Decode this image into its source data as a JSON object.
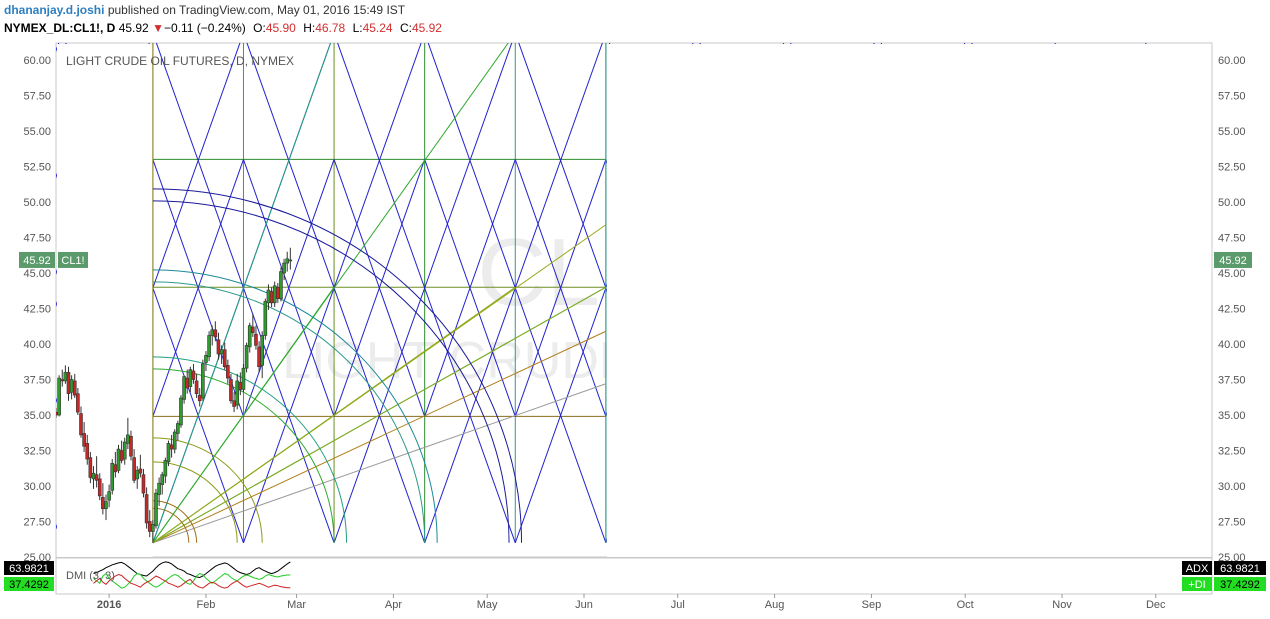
{
  "header": {
    "author": "dhananjay.d.joshi",
    "published": "published on TradingView.com, May 01, 2016 15:49 IST",
    "symbol": "NYMEX_DL:CL1!, D",
    "last": "45.92",
    "change_arrow": "▼",
    "change": "−0.11 (−0.24%)",
    "o_label": "O:",
    "o": "45.90",
    "h_label": "H:",
    "h": "46.78",
    "l_label": "L:",
    "l": "45.24",
    "c_label": "C:",
    "c": "45.92"
  },
  "chart_data": {
    "type": "candlestick",
    "title": "LIGHT CRUDE OIL FUTURES, D, NYMEX",
    "watermark_symbol": "CL1!, D",
    "watermark_name": "LIGHT CRUDE OIL FUTURES",
    "ylim": [
      25,
      61.2
    ],
    "y_ticks": [
      "25.00",
      "27.50",
      "30.00",
      "32.50",
      "35.00",
      "37.50",
      "40.00",
      "42.50",
      "45.00",
      "47.50",
      "50.00",
      "52.50",
      "55.00",
      "57.50",
      "60.00"
    ],
    "y_tick_values": [
      25,
      27.5,
      30,
      32.5,
      35,
      37.5,
      40,
      42.5,
      45,
      47.5,
      50,
      52.5,
      55,
      57.5,
      60
    ],
    "x_ticks": [
      "2016",
      "Feb",
      "Mar",
      "Apr",
      "May",
      "Jun",
      "Jul",
      "Aug",
      "Sep",
      "Oct",
      "Nov",
      "Dec"
    ],
    "x_tick_days": [
      4,
      35,
      64,
      95,
      125,
      156,
      186,
      217,
      248,
      278,
      309,
      339
    ],
    "x_range_days": [
      -13,
      357
    ],
    "last_price_label": "45.92",
    "last_price_symbol": "CL1!",
    "last_price": 45.92,
    "candles": [
      [
        -13,
        35.2,
        35.5,
        34.8,
        35.0
      ],
      [
        -12,
        35.0,
        37.8,
        34.9,
        37.6
      ],
      [
        -11,
        37.5,
        38.2,
        37.0,
        37.4
      ],
      [
        -10,
        37.4,
        38.5,
        37.2,
        38.0
      ],
      [
        -9,
        38.0,
        38.4,
        36.0,
        36.5
      ],
      [
        -8,
        36.6,
        37.8,
        36.1,
        37.5
      ],
      [
        -7,
        37.4,
        37.9,
        36.2,
        36.4
      ],
      [
        -6,
        36.5,
        36.9,
        35.0,
        35.2
      ],
      [
        -5,
        35.1,
        35.6,
        33.4,
        33.6
      ],
      [
        -4,
        33.7,
        34.5,
        32.4,
        32.8
      ],
      [
        -3,
        33.0,
        33.6,
        31.5,
        31.9
      ],
      [
        -2,
        32.0,
        32.4,
        30.2,
        30.6
      ],
      [
        -1,
        30.5,
        31.4,
        29.8,
        30.9
      ],
      [
        0,
        30.8,
        32.1,
        29.9,
        30.4
      ],
      [
        1,
        30.5,
        30.9,
        29.0,
        29.3
      ],
      [
        2,
        29.2,
        30.2,
        28.0,
        28.4
      ],
      [
        3,
        28.4,
        29.4,
        27.6,
        28.9
      ],
      [
        4,
        29.0,
        30.1,
        28.5,
        29.6
      ],
      [
        5,
        29.7,
        31.9,
        29.4,
        31.6
      ],
      [
        6,
        31.5,
        32.4,
        30.6,
        31.0
      ],
      [
        7,
        31.1,
        32.9,
        30.9,
        32.6
      ],
      [
        8,
        32.5,
        33.2,
        31.6,
        31.8
      ],
      [
        9,
        31.9,
        33.4,
        31.5,
        33.1
      ],
      [
        10,
        33.0,
        34.8,
        32.6,
        33.6
      ],
      [
        11,
        33.5,
        33.9,
        31.8,
        32.1
      ],
      [
        12,
        32.0,
        32.6,
        30.2,
        30.4
      ],
      [
        13,
        30.5,
        31.4,
        29.8,
        31.1
      ],
      [
        14,
        31.2,
        32.2,
        30.6,
        30.9
      ],
      [
        15,
        30.8,
        31.2,
        29.2,
        29.5
      ],
      [
        16,
        29.4,
        29.9,
        27.0,
        27.4
      ],
      [
        17,
        27.5,
        28.3,
        26.4,
        26.8
      ],
      [
        18,
        26.8,
        27.6,
        26.0,
        27.3
      ],
      [
        19,
        27.2,
        29.8,
        27.0,
        29.5
      ],
      [
        20,
        29.4,
        30.6,
        28.6,
        30.2
      ],
      [
        21,
        30.1,
        31.0,
        29.4,
        30.8
      ],
      [
        22,
        30.7,
        32.0,
        30.2,
        31.8
      ],
      [
        23,
        31.7,
        33.2,
        31.4,
        33.0
      ],
      [
        24,
        32.9,
        33.6,
        32.0,
        32.6
      ],
      [
        25,
        32.6,
        34.0,
        32.3,
        33.8
      ],
      [
        26,
        33.7,
        34.6,
        33.2,
        34.4
      ],
      [
        27,
        34.3,
        36.4,
        34.1,
        36.2
      ],
      [
        28,
        36.1,
        37.8,
        35.8,
        37.7
      ],
      [
        29,
        37.6,
        38.2,
        36.5,
        36.9
      ],
      [
        30,
        37.0,
        38.4,
        36.6,
        38.2
      ],
      [
        31,
        38.1,
        38.6,
        37.2,
        37.5
      ],
      [
        32,
        37.4,
        37.9,
        36.2,
        36.5
      ],
      [
        33,
        36.4,
        36.9,
        35.6,
        36.0
      ],
      [
        34,
        36.2,
        38.9,
        36.0,
        38.6
      ],
      [
        35,
        38.7,
        39.5,
        38.1,
        39.2
      ],
      [
        36,
        39.1,
        40.9,
        38.8,
        40.6
      ],
      [
        37,
        40.6,
        41.3,
        39.9,
        41.0
      ],
      [
        38,
        41.0,
        41.6,
        40.2,
        40.5
      ],
      [
        39,
        40.3,
        40.8,
        38.9,
        39.3
      ],
      [
        40,
        39.3,
        39.9,
        38.6,
        39.6
      ],
      [
        41,
        39.6,
        40.1,
        38.2,
        38.4
      ],
      [
        42,
        38.5,
        38.9,
        37.2,
        37.6
      ],
      [
        43,
        37.5,
        37.9,
        35.8,
        36.0
      ],
      [
        44,
        36.0,
        36.6,
        35.2,
        35.6
      ],
      [
        45,
        35.7,
        37.9,
        35.4,
        37.4
      ],
      [
        46,
        37.3,
        38.0,
        36.4,
        36.8
      ],
      [
        47,
        36.8,
        38.6,
        36.6,
        38.3
      ],
      [
        48,
        38.3,
        40.1,
        38.0,
        39.9
      ],
      [
        49,
        39.8,
        41.5,
        39.4,
        41.3
      ],
      [
        50,
        41.2,
        42.1,
        40.5,
        40.8
      ],
      [
        51,
        40.7,
        41.3,
        39.6,
        39.9
      ],
      [
        52,
        39.8,
        40.2,
        38.0,
        38.4
      ],
      [
        53,
        38.5,
        40.9,
        37.6,
        40.6
      ],
      [
        54,
        40.6,
        43.2,
        40.3,
        43.0
      ],
      [
        55,
        42.9,
        44.2,
        42.4,
        43.8
      ],
      [
        56,
        43.7,
        44.0,
        42.6,
        42.9
      ],
      [
        57,
        42.9,
        44.4,
        42.6,
        44.1
      ],
      [
        58,
        44.0,
        44.3,
        42.9,
        43.2
      ],
      [
        59,
        43.2,
        45.4,
        43.0,
        45.1
      ],
      [
        60,
        45.0,
        46.0,
        44.5,
        45.7
      ],
      [
        61,
        45.7,
        46.5,
        45.1,
        46.0
      ],
      [
        62,
        45.9,
        46.78,
        45.24,
        45.92
      ]
    ],
    "indicator": {
      "name": "DMI (3, 3)",
      "adx_label": "ADX",
      "adx_value": "63.9821",
      "di_label": "+DI",
      "di_value": "37.4292",
      "adx": [
        40,
        42,
        45,
        48,
        52,
        55,
        58,
        60,
        62,
        63,
        60,
        55,
        50,
        45,
        40,
        38,
        36,
        35,
        40,
        45,
        52,
        58,
        62,
        64,
        63,
        60,
        55,
        50,
        48,
        45,
        40,
        38,
        35,
        33,
        32,
        35,
        40,
        45,
        50,
        55,
        58,
        60,
        62,
        60,
        55,
        50,
        45,
        42,
        40,
        38,
        40,
        45,
        50,
        52,
        48,
        45,
        42,
        40,
        42,
        45,
        50,
        55,
        60,
        64
      ],
      "plus_di": [
        30,
        25,
        20,
        35,
        40,
        30,
        25,
        20,
        15,
        10,
        12,
        18,
        25,
        35,
        40,
        38,
        30,
        25,
        20,
        15,
        12,
        15,
        20,
        25,
        30,
        35,
        38,
        36,
        30,
        25,
        20,
        18,
        25,
        35,
        40,
        38,
        30,
        25,
        20,
        25,
        30,
        35,
        40,
        38,
        32,
        28,
        25,
        30,
        35,
        37,
        35,
        32,
        30,
        28,
        30,
        35,
        38,
        36,
        34,
        33,
        35,
        36,
        37,
        37
      ],
      "minus_di": [
        20,
        25,
        30,
        22,
        18,
        25,
        30,
        35,
        38,
        36,
        30,
        25,
        20,
        18,
        15,
        12,
        18,
        22,
        25,
        30,
        35,
        32,
        28,
        25,
        20,
        18,
        15,
        12,
        15,
        20,
        25,
        28,
        20,
        15,
        12,
        10,
        15,
        20,
        22,
        20,
        15,
        12,
        10,
        12,
        18,
        22,
        25,
        20,
        15,
        12,
        14,
        16,
        18,
        20,
        18,
        15,
        12,
        14,
        16,
        15,
        13,
        12,
        11,
        11
      ]
    },
    "overlay": {
      "origin": [
        18,
        26.0
      ],
      "grid_x_days": [
        18,
        47,
        76,
        105,
        134,
        163
      ],
      "grid_y_values": [
        26.0,
        34.9,
        44.0,
        53.0,
        61.9
      ],
      "green_rays_to": [
        [
          76,
          61.9
        ],
        [
          134,
          61.9
        ],
        [
          163,
          44.0
        ]
      ],
      "olive_rays_to": [
        [
          163,
          48.4
        ]
      ],
      "brown_rays_to": [
        [
          163,
          40.9
        ]
      ],
      "gray_rays_to": [
        [
          163,
          37.2
        ]
      ],
      "arc_radii_days": [
        11.5,
        14,
        27,
        35,
        58,
        62,
        87,
        91,
        114,
        118
      ]
    }
  }
}
